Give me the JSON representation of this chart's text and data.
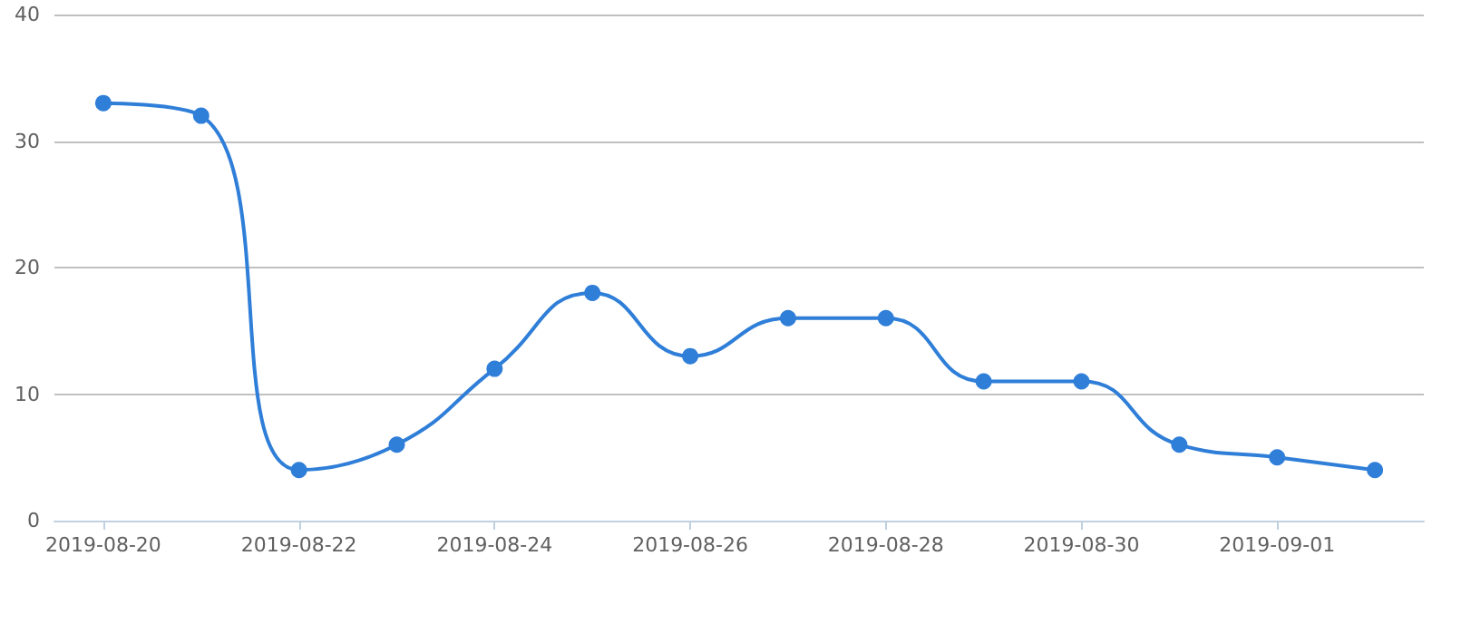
{
  "chart_data": {
    "type": "line",
    "categories": [
      "2019-08-20",
      null,
      "2019-08-22",
      null,
      "2019-08-24",
      null,
      "2019-08-26",
      null,
      "2019-08-28",
      null,
      "2019-08-30",
      null,
      "2019-09-01",
      null
    ],
    "series": [
      {
        "color": "#2f7ed8",
        "values": [
          33,
          32,
          4,
          6,
          12,
          18,
          13,
          16,
          16,
          11,
          11,
          6,
          5,
          4
        ]
      }
    ],
    "ylim": [
      0,
      40
    ],
    "yticks": [
      0,
      10,
      20,
      30,
      40
    ],
    "grid": "y",
    "marker": "circle",
    "line_style": "solid"
  }
}
